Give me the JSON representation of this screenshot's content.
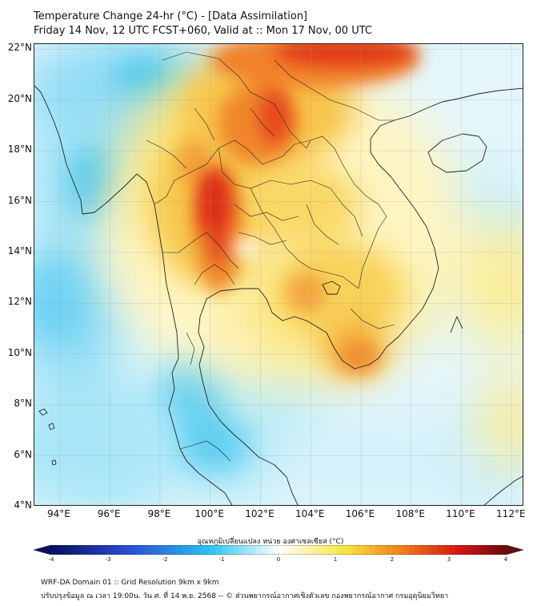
{
  "header": {
    "title": "Temperature Change 24-hr (°C) - [Data Assimilation]",
    "subtitle": "Friday 14 Nov, 12 UTC FCST+060, Valid at :: Mon 17 Nov, 00 UTC"
  },
  "map": {
    "lon_range": [
      93,
      112.5
    ],
    "lat_range": [
      4,
      22.2
    ],
    "lat_labels": [
      "22°N",
      "20°N",
      "18°N",
      "16°N",
      "14°N",
      "12°N",
      "10°N",
      "8°N",
      "6°N",
      "4°N"
    ],
    "lat_values": [
      22,
      20,
      18,
      16,
      14,
      12,
      10,
      8,
      6,
      4
    ],
    "lon_labels": [
      "94°E",
      "96°E",
      "98°E",
      "100°E",
      "102°E",
      "104°E",
      "106°E",
      "108°E",
      "110°E",
      "112°E"
    ],
    "lon_values": [
      94,
      96,
      98,
      100,
      102,
      104,
      106,
      108,
      110,
      112
    ]
  },
  "colorbar": {
    "title": "อุณหภูมิเปลี่ยนแปลง หน่วย องศาเซลเซียส (°C)",
    "tick_labels": [
      "-4",
      "-3",
      "-2",
      "-1",
      "0",
      "1",
      "2",
      "3",
      "4"
    ],
    "tick_values": [
      -4,
      -3,
      -2,
      -1,
      0,
      1,
      2,
      3,
      4
    ],
    "range": [
      -4,
      4
    ],
    "colors": {
      "deep_cold": "#08105e",
      "cold": "#2a4fd6",
      "cool": "#29c3f0",
      "neutral": "#ffffff",
      "warm": "#f7e33c",
      "hot": "#f07a18",
      "very_hot": "#d41212",
      "extreme": "#6b0a0a"
    }
  },
  "footer": {
    "line1": "WRF-DA Domain 01 :: Grid Resolution 9km x 9km",
    "line2": "ปรับปรุงข้อมูล ณ เวลา 19:00น. วัน ศ. ที่ 14 พ.ย. 2568 -- © ส่วนพยากรณ์อากาศเชิงตัวเลข กองพยากรณ์อากาศ กรมอุตุนิยมวิทยา"
  }
}
